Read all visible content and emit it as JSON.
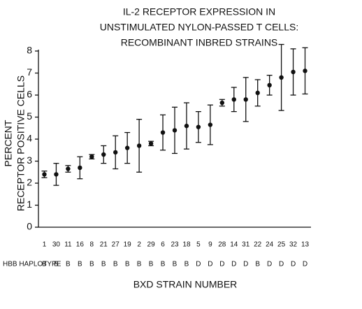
{
  "chart_data": {
    "type": "errorbar",
    "title": [
      "IL-2 RECEPTOR EXPRESSION IN",
      "UNSTIMULATED NYLON-PASSED T CELLS:",
      "RECOMBINANT INBRED STRAINS"
    ],
    "ylabel": [
      "PERCENT",
      "RECEPTOR POSITIVE CELLS"
    ],
    "xlabel": "BXD STRAIN NUMBER",
    "haplotype_label": "HBB HAPLOTYPE",
    "categories": [
      "1",
      "30",
      "11",
      "16",
      "8",
      "21",
      "27",
      "19",
      "2",
      "29",
      "6",
      "23",
      "18",
      "5",
      "9",
      "28",
      "14",
      "31",
      "22",
      "24",
      "25",
      "32",
      "13"
    ],
    "haplotypes": [
      "B",
      "B",
      "B",
      "B",
      "B",
      "B",
      "B",
      "B",
      "B",
      "B",
      "B",
      "B",
      "B",
      "D",
      "D",
      "D",
      "D",
      "D",
      "B",
      "D",
      "D",
      "D",
      "D"
    ],
    "values": [
      2.4,
      2.4,
      2.65,
      2.7,
      3.2,
      3.3,
      3.4,
      3.6,
      3.7,
      3.8,
      4.3,
      4.4,
      4.6,
      4.55,
      4.65,
      5.65,
      5.8,
      5.8,
      6.1,
      6.45,
      6.8,
      7.05,
      7.1
    ],
    "errors": [
      0.15,
      0.5,
      0.15,
      0.5,
      0.1,
      0.4,
      0.75,
      0.7,
      1.2,
      0.1,
      0.8,
      1.05,
      1.05,
      0.7,
      0.9,
      0.15,
      0.55,
      1.0,
      0.6,
      0.45,
      1.5,
      1.05,
      1.05
    ],
    "color": "#111111",
    "ylim": [
      0,
      8
    ],
    "yticks": [
      0,
      1,
      2,
      3,
      4,
      5,
      6,
      7,
      8
    ]
  }
}
